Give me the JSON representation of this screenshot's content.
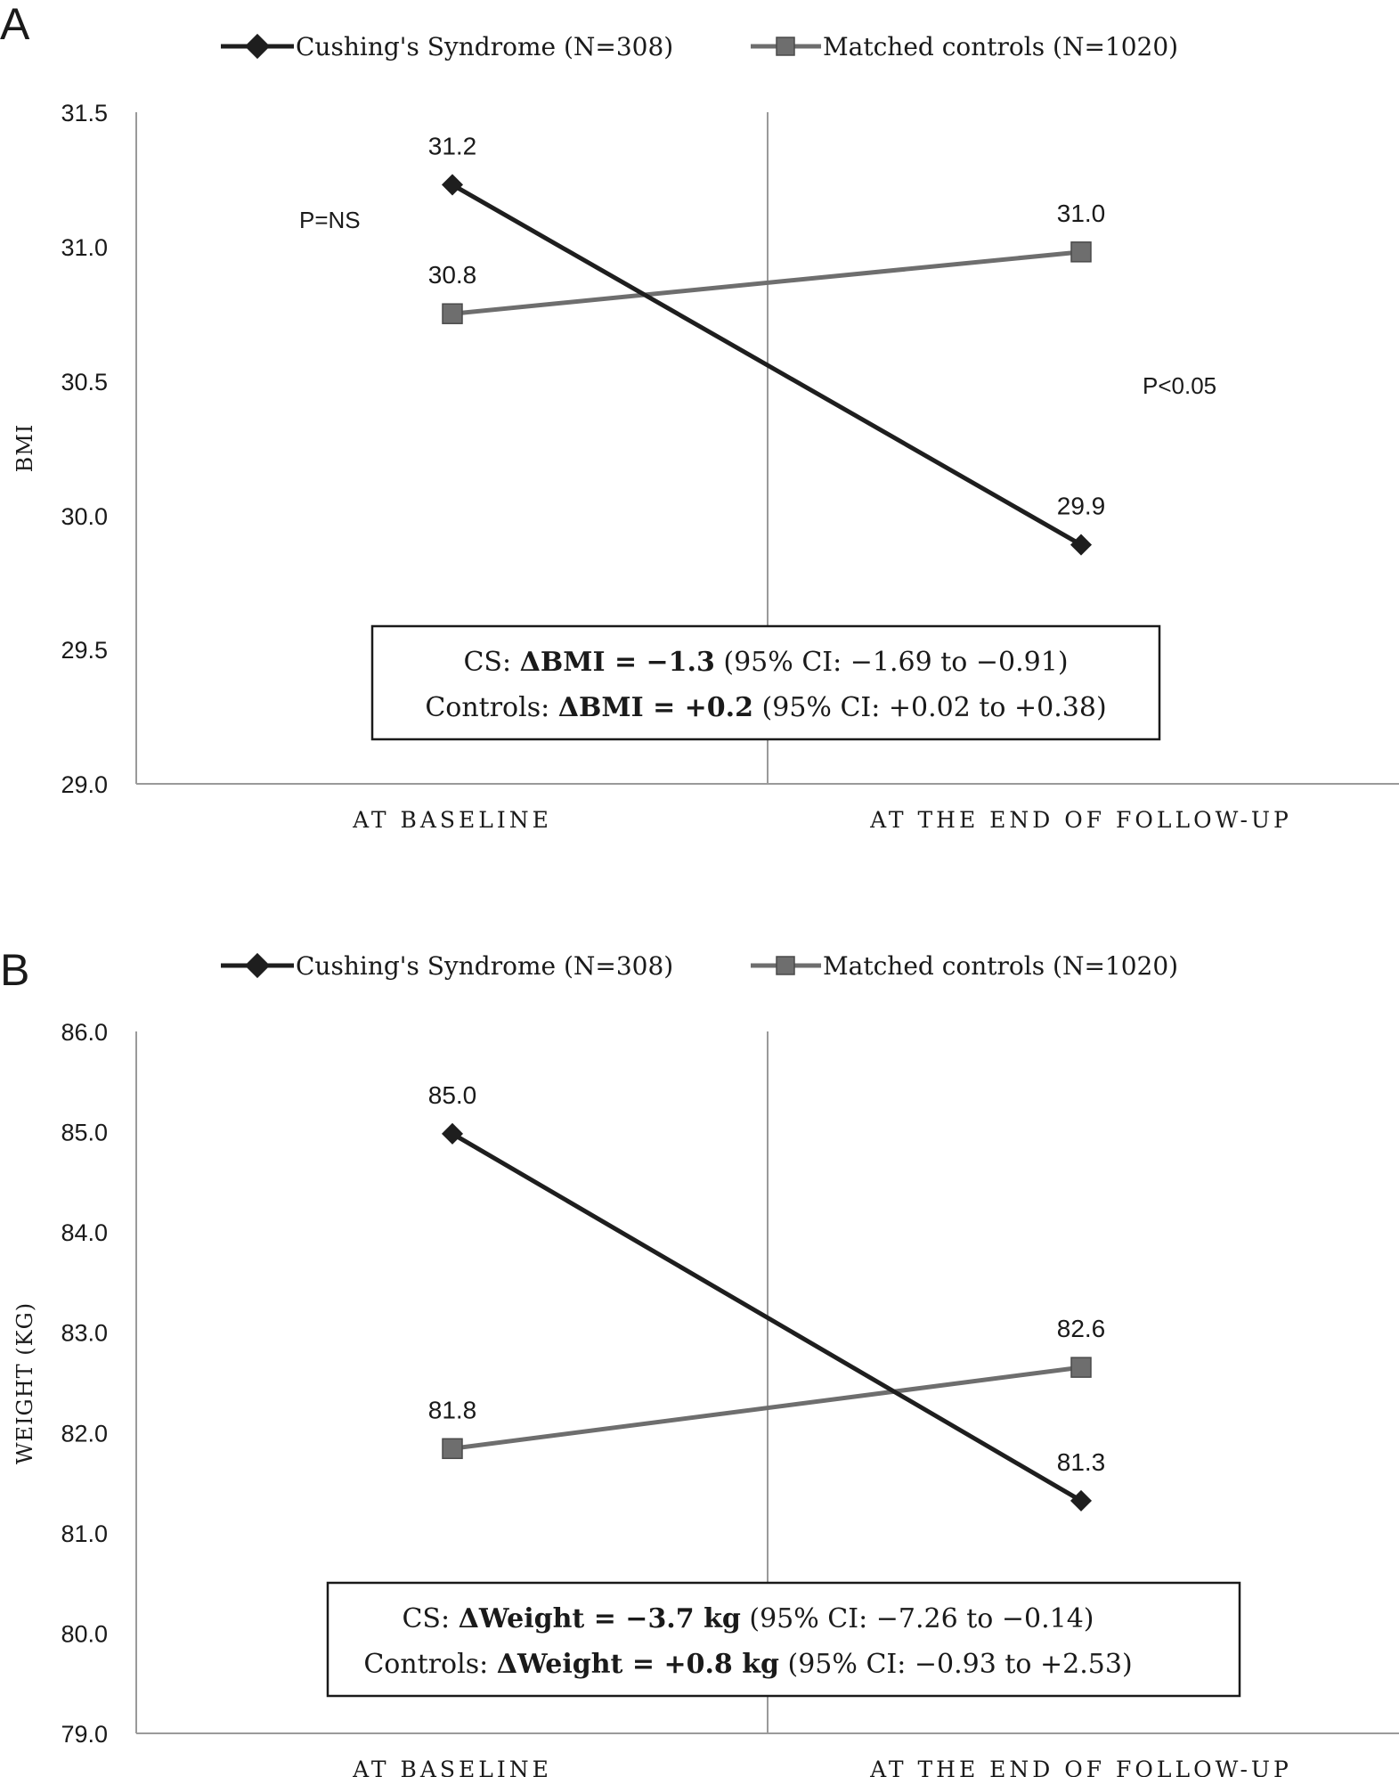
{
  "chart_data": [
    {
      "panel": "A",
      "type": "line",
      "categories": [
        "AT BASELINE",
        "AT THE END OF FOLLOW-UP"
      ],
      "series": [
        {
          "name": "Cushing's Syndrome (N=308)",
          "values": [
            31.23,
            29.89
          ],
          "labels": [
            "31.2",
            "29.9"
          ],
          "color": "#1e1e1e",
          "marker": "diamond"
        },
        {
          "name": "Matched controls (N=1020)",
          "values": [
            30.75,
            30.98
          ],
          "labels": [
            "30.8",
            "31.0"
          ],
          "color": "#6e6e6e",
          "marker": "square"
        }
      ],
      "ylabel": "BMI",
      "ylim": [
        29.0,
        31.5
      ],
      "yticks": [
        "29.0",
        "29.5",
        "30.0",
        "30.5",
        "31.0",
        "31.5"
      ],
      "annotations": {
        "baseline_p": "P=NS",
        "followup_p": "P<0.05"
      },
      "box": {
        "line1": {
          "prefix": "CS: ",
          "bold": "ΔBMI = −1.3",
          "suffix": " (95% CI: −1.69 to −0.91)"
        },
        "line2": {
          "prefix": "Controls: ",
          "bold": "ΔBMI = +0.2",
          "suffix": " (95% CI: +0.02 to +0.38)"
        }
      }
    },
    {
      "panel": "B",
      "type": "line",
      "categories": [
        "AT BASELINE",
        "AT THE END OF FOLLOW-UP"
      ],
      "series": [
        {
          "name": "Cushing's Syndrome (N=308)",
          "values": [
            84.98,
            81.32
          ],
          "labels": [
            "85.0",
            "81.3"
          ],
          "color": "#1e1e1e",
          "marker": "diamond"
        },
        {
          "name": "Matched controls (N=1020)",
          "values": [
            81.84,
            82.65
          ],
          "labels": [
            "81.8",
            "82.6"
          ],
          "color": "#6e6e6e",
          "marker": "square"
        }
      ],
      "ylabel": "WEIGHT (KG)",
      "ylim": [
        79.0,
        86.0
      ],
      "yticks": [
        "79.0",
        "80.0",
        "81.0",
        "82.0",
        "83.0",
        "84.0",
        "85.0",
        "86.0"
      ],
      "annotations": {},
      "box": {
        "line1": {
          "prefix": "CS: ",
          "bold": "ΔWeight = −3.7 kg",
          "suffix": " (95% CI: −7.26 to −0.14)"
        },
        "line2": {
          "prefix": "Controls: ",
          "bold": "ΔWeight = +0.8 kg",
          "suffix": " (95% CI: −0.93 to +2.53)"
        }
      }
    }
  ]
}
